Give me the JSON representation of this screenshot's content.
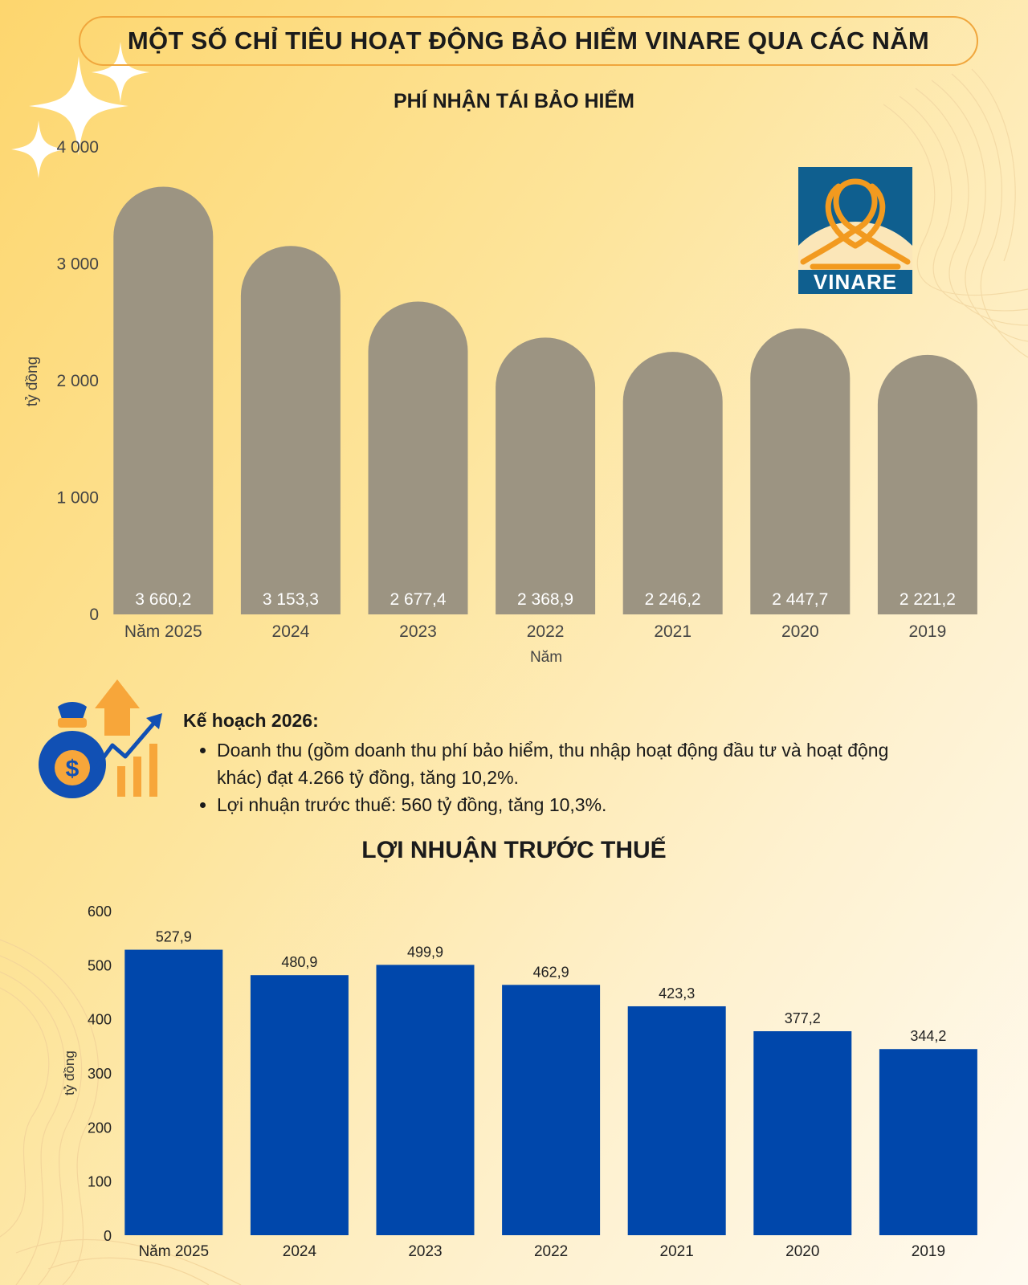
{
  "page_title": "MỘT SỐ CHỈ TIÊU HOẠT ĐỘNG BẢO HIỂM VINARE QUA CÁC NĂM",
  "logo": {
    "text": "VINARE",
    "colors": {
      "blue": "#0f5f8f",
      "orange": "#f29a1f"
    }
  },
  "plan": {
    "title": "Kế hoạch 2026:",
    "items": [
      "Doanh thu (gồm doanh thu phí bảo hiểm, thu nhập hoạt động đầu tư và hoạt động khác) đạt 4.266 tỷ đồng, tăng 10,2%.",
      "Lợi nhuận trước thuế: 560 tỷ đồng, tăng 10,3%."
    ],
    "icon": "money-bag-growth-icon"
  },
  "chart_data": [
    {
      "type": "bar",
      "title": "PHÍ NHẬN TÁI BẢO HIỂM",
      "xlabel": "Năm",
      "ylabel": "tỷ đồng",
      "categories": [
        "Năm 2025",
        "2024",
        "2023",
        "2022",
        "2021",
        "2020",
        "2019"
      ],
      "values": [
        3660.2,
        3153.3,
        2677.4,
        2368.9,
        2246.2,
        2447.7,
        2221.2
      ],
      "value_labels": [
        "3 660,2",
        "3 153,3",
        "2 677,4",
        "2 368,9",
        "2 246,2",
        "2 447,7",
        "2 221,2"
      ],
      "ylim": [
        0,
        4000
      ],
      "yticks": [
        0,
        1000,
        2000,
        3000,
        4000
      ],
      "ytick_labels": [
        "0",
        "1 000",
        "2 000",
        "3 000",
        "4 000"
      ],
      "grid": false,
      "bar_style": "rounded-top",
      "color": "#9c9482"
    },
    {
      "type": "bar",
      "title": "LỢI NHUẬN TRƯỚC THUẾ",
      "xlabel": "",
      "ylabel": "tỷ đồng",
      "categories": [
        "Năm 2025",
        "2024",
        "2023",
        "2022",
        "2021",
        "2020",
        "2019"
      ],
      "values": [
        527.9,
        480.9,
        499.9,
        462.9,
        423.3,
        377.2,
        344.2
      ],
      "value_labels": [
        "527,9",
        "480,9",
        "499,9",
        "462,9",
        "423,3",
        "377,2",
        "344,2"
      ],
      "ylim": [
        0,
        600
      ],
      "yticks": [
        0,
        100,
        200,
        300,
        400,
        500,
        600
      ],
      "ytick_labels": [
        "0",
        "100",
        "200",
        "300",
        "400",
        "500",
        "600"
      ],
      "grid": false,
      "bar_style": "square",
      "color": "#0047ab"
    }
  ]
}
